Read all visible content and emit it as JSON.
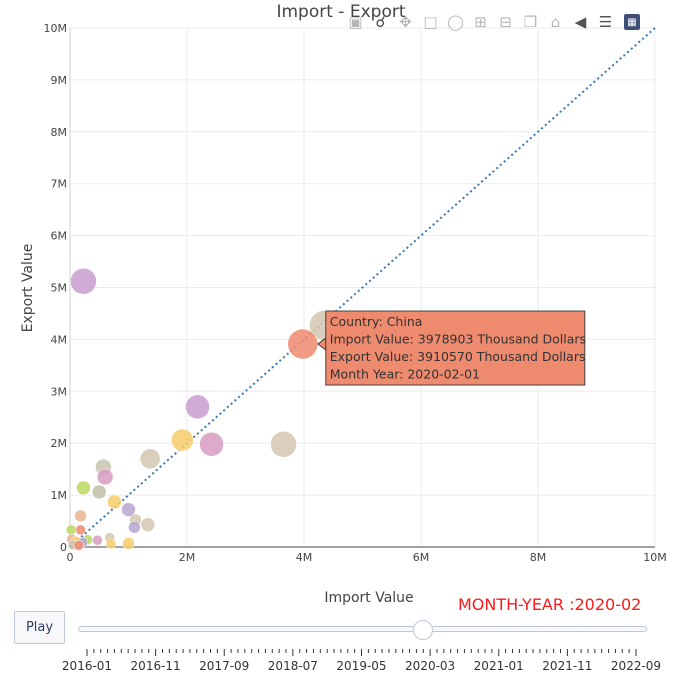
{
  "chart_data": {
    "type": "scatter",
    "title": "Import - Export",
    "xlabel": "Import Value",
    "ylabel": "Export Value",
    "xlim": [
      0,
      10000000
    ],
    "ylim": [
      0,
      10000000
    ],
    "x_ticks": [
      "0",
      "2M",
      "4M",
      "6M",
      "8M",
      "10M"
    ],
    "y_ticks": [
      "0",
      "1M",
      "2M",
      "3M",
      "4M",
      "5M",
      "6M",
      "7M",
      "8M",
      "9M",
      "10M"
    ],
    "grid": true,
    "reference_line": {
      "style": "dotted",
      "color": "#3b78b0",
      "from": [
        0,
        0
      ],
      "to": [
        10000000,
        10000000
      ]
    },
    "points": [
      {
        "x": 230000,
        "y": 5120000,
        "size": 26,
        "color": "#c79ccf"
      },
      {
        "x": 4350000,
        "y": 4270000,
        "size": 30,
        "color": "#d3c6b0"
      },
      {
        "x": 3978903,
        "y": 3910570,
        "size": 30,
        "color": "#ee8a6e"
      },
      {
        "x": 2180000,
        "y": 2700000,
        "size": 24,
        "color": "#c79ccf"
      },
      {
        "x": 1920000,
        "y": 2060000,
        "size": 22,
        "color": "#f7cd6a"
      },
      {
        "x": 2420000,
        "y": 1980000,
        "size": 24,
        "color": "#d79bc1"
      },
      {
        "x": 3650000,
        "y": 1980000,
        "size": 26,
        "color": "#d3c6b0"
      },
      {
        "x": 1370000,
        "y": 1700000,
        "size": 20,
        "color": "#d3c6b0"
      },
      {
        "x": 570000,
        "y": 1540000,
        "size": 16,
        "color": "#c9c4b0"
      },
      {
        "x": 600000,
        "y": 1350000,
        "size": 16,
        "color": "#d79bc1"
      },
      {
        "x": 230000,
        "y": 1140000,
        "size": 14,
        "color": "#b9d85f"
      },
      {
        "x": 500000,
        "y": 1060000,
        "size": 14,
        "color": "#bfc0a8"
      },
      {
        "x": 760000,
        "y": 870000,
        "size": 14,
        "color": "#f7cd6a"
      },
      {
        "x": 1000000,
        "y": 720000,
        "size": 14,
        "color": "#b7a5d0"
      },
      {
        "x": 180000,
        "y": 600000,
        "size": 12,
        "color": "#e9b48f"
      },
      {
        "x": 1120000,
        "y": 520000,
        "size": 12,
        "color": "#d3c6b0"
      },
      {
        "x": 1330000,
        "y": 430000,
        "size": 14,
        "color": "#d3c6b0"
      },
      {
        "x": 1100000,
        "y": 380000,
        "size": 12,
        "color": "#b7a5d0"
      },
      {
        "x": 180000,
        "y": 330000,
        "size": 10,
        "color": "#ee8a6e"
      },
      {
        "x": 20000,
        "y": 330000,
        "size": 10,
        "color": "#b9d85f"
      },
      {
        "x": 680000,
        "y": 180000,
        "size": 10,
        "color": "#d3c6b0"
      },
      {
        "x": 30000,
        "y": 150000,
        "size": 10,
        "color": "#e9b48f"
      },
      {
        "x": 300000,
        "y": 140000,
        "size": 10,
        "color": "#b9d85f"
      },
      {
        "x": 470000,
        "y": 130000,
        "size": 10,
        "color": "#d79bc1"
      },
      {
        "x": 100000,
        "y": 110000,
        "size": 10,
        "color": "#f7cd6a"
      },
      {
        "x": 220000,
        "y": 90000,
        "size": 10,
        "color": "#b7a5d0"
      },
      {
        "x": 1000000,
        "y": 70000,
        "size": 12,
        "color": "#f7cd6a"
      },
      {
        "x": 700000,
        "y": 60000,
        "size": 10,
        "color": "#f7cd6a"
      },
      {
        "x": 50000,
        "y": 40000,
        "size": 10,
        "color": "#c9c4b0"
      },
      {
        "x": 150000,
        "y": 30000,
        "size": 10,
        "color": "#ee8a6e"
      }
    ],
    "hover": {
      "x": 3978903,
      "y": 3910570,
      "bg": "#ee8a6e",
      "lines": [
        "Country: China",
        "Import Value: 3978903  Thousand Dollars",
        "Export Value: 3910570  Thousand Dollars",
        "Month Year: 2020-02-01"
      ]
    }
  },
  "modebar": {
    "icons": [
      "camera-icon",
      "zoom-icon",
      "pan-icon",
      "box-select-icon",
      "lasso-icon",
      "zoom-in-icon",
      "zoom-out-icon",
      "autoscale-icon",
      "home-icon",
      "spike-lines-icon",
      "compare-hover-icon",
      "plotly-logo-icon"
    ]
  },
  "animation": {
    "play_label": "Play",
    "current_label": "MONTH-YEAR :2020-02",
    "slider_ticks": [
      "2016-01",
      "2016-11",
      "2017-09",
      "2018-07",
      "2019-05",
      "2020-03",
      "2021-01",
      "2021-11",
      "2022-09"
    ],
    "total_steps": 81,
    "current_step": 49
  }
}
